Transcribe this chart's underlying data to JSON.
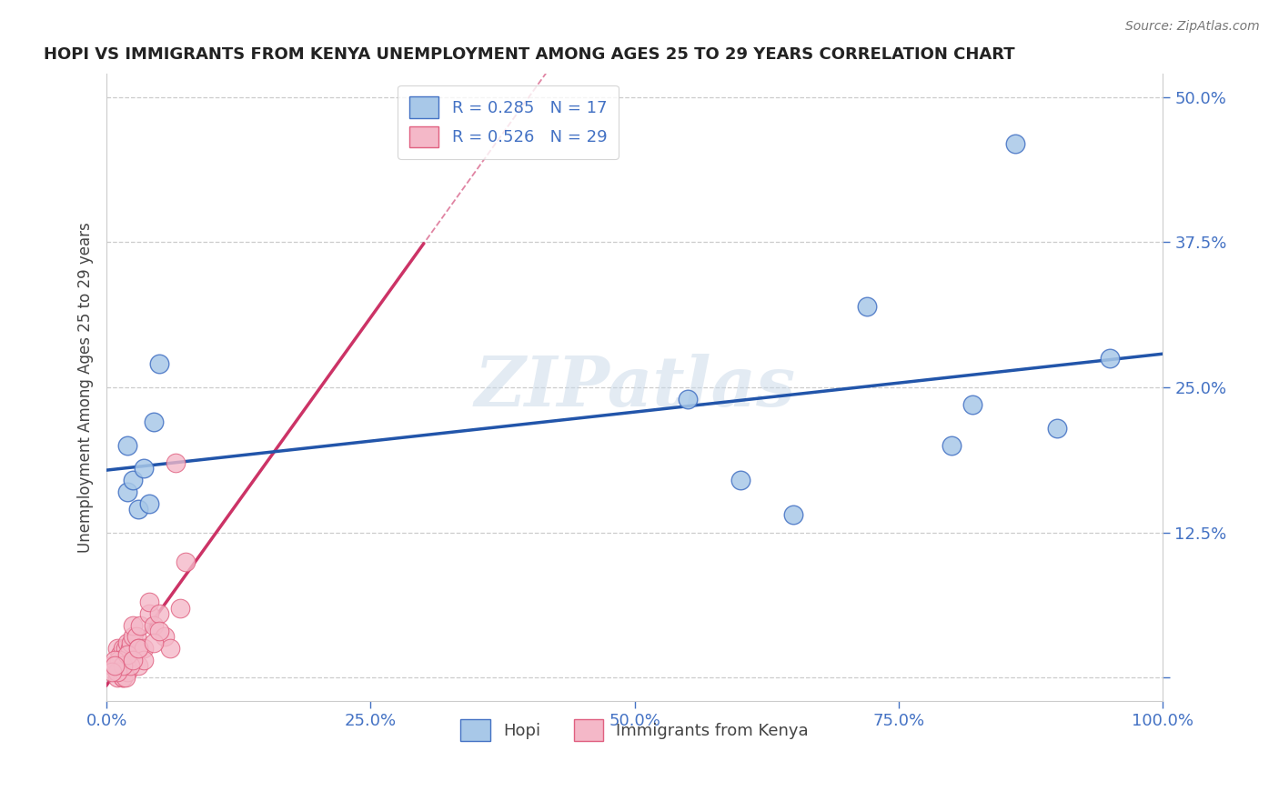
{
  "title": "HOPI VS IMMIGRANTS FROM KENYA UNEMPLOYMENT AMONG AGES 25 TO 29 YEARS CORRELATION CHART",
  "source": "Source: ZipAtlas.com",
  "ylabel": "Unemployment Among Ages 25 to 29 years",
  "xlim": [
    0.0,
    100.0
  ],
  "ylim": [
    -2.0,
    52.0
  ],
  "xticks": [
    0.0,
    25.0,
    50.0,
    75.0,
    100.0
  ],
  "xticklabels": [
    "0.0%",
    "25.0%",
    "50.0%",
    "75.0%",
    "100.0%"
  ],
  "yticks": [
    0.0,
    12.5,
    25.0,
    37.5,
    50.0
  ],
  "yticklabels": [
    "",
    "12.5%",
    "25.0%",
    "37.5%",
    "50.0%"
  ],
  "legend_r1": "R = 0.285",
  "legend_n1": "N = 17",
  "legend_r2": "R = 0.526",
  "legend_n2": "N = 29",
  "watermark": "ZIPatlas",
  "hopi_color": "#a8c8e8",
  "hopi_edge": "#4472c4",
  "kenya_color": "#f4b8c8",
  "kenya_edge": "#e06080",
  "trendline1_color": "#2255aa",
  "trendline2_color": "#cc3366",
  "hopi_points_x": [
    2.0,
    2.5,
    5.0,
    2.0,
    3.0,
    3.5,
    4.0,
    4.5,
    55.0,
    60.0,
    65.0,
    72.0,
    80.0,
    82.0,
    86.0,
    90.0,
    95.0
  ],
  "hopi_points_y": [
    16.0,
    17.0,
    27.0,
    20.0,
    14.5,
    18.0,
    15.0,
    22.0,
    24.0,
    17.0,
    14.0,
    32.0,
    20.0,
    23.5,
    46.0,
    21.5,
    27.5
  ],
  "kenya_points_x": [
    0.5,
    1.0,
    1.2,
    1.3,
    1.5,
    1.5,
    1.8,
    2.0,
    2.0,
    2.2,
    2.3,
    2.5,
    2.5,
    2.8,
    3.0,
    3.2,
    3.5,
    4.0,
    4.0,
    4.5,
    5.0,
    5.5,
    6.0,
    6.5,
    7.0,
    7.5,
    1.0,
    1.2,
    1.5
  ],
  "kenya_points_y": [
    1.0,
    2.5,
    0.5,
    2.0,
    0.5,
    2.5,
    2.5,
    1.0,
    3.0,
    2.5,
    3.0,
    3.5,
    4.5,
    3.5,
    2.5,
    4.5,
    2.5,
    5.5,
    6.5,
    4.5,
    5.5,
    3.5,
    2.5,
    18.5,
    6.0,
    10.0,
    0.0,
    1.5,
    0.0
  ],
  "kenya_extra_x": [
    1.5,
    2.0,
    3.0,
    3.5,
    1.8,
    2.2,
    0.8,
    1.0,
    1.5,
    2.0,
    2.5,
    3.0,
    4.5,
    5.0,
    0.5,
    0.8
  ],
  "kenya_extra_y": [
    0.0,
    0.5,
    1.0,
    1.5,
    0.0,
    1.0,
    1.5,
    0.5,
    1.0,
    2.0,
    1.5,
    2.5,
    3.0,
    4.0,
    0.5,
    1.0
  ]
}
